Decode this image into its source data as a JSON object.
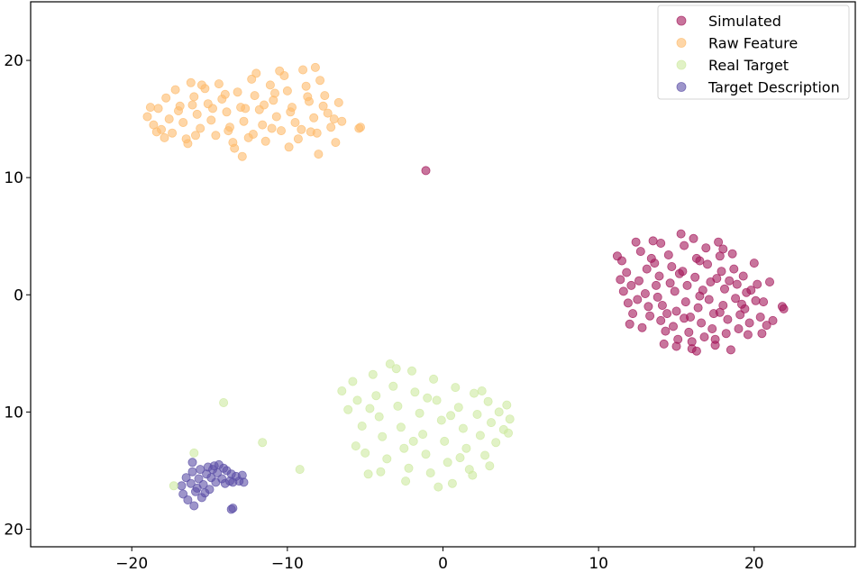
{
  "chart_data": {
    "type": "scatter",
    "title": "",
    "xlabel": "",
    "ylabel": "",
    "xlim": [
      -26.5,
      26.5
    ],
    "ylim": [
      -21.5,
      25
    ],
    "grid": false,
    "legend_placement": "top-right",
    "x_ticks": [
      {
        "value": -20,
        "label": "−20"
      },
      {
        "value": -10,
        "label": "−10"
      },
      {
        "value": 0,
        "label": "0"
      },
      {
        "value": 10,
        "label": "10"
      },
      {
        "value": 20,
        "label": "20"
      }
    ],
    "y_ticks": [
      {
        "value": 20,
        "label": "20"
      },
      {
        "value": 10,
        "label": "10"
      },
      {
        "value": 0,
        "label": "0"
      },
      {
        "value": -10,
        "label": "10"
      },
      {
        "value": -20,
        "label": "20"
      }
    ],
    "series": [
      {
        "name": "Simulated",
        "color": "#a3175a",
        "points": [
          [
            11.2,
            3.3
          ],
          [
            11.5,
            2.9
          ],
          [
            11.8,
            1.9
          ],
          [
            11.6,
            0.3
          ],
          [
            11.9,
            -0.7
          ],
          [
            12.2,
            -1.6
          ],
          [
            12.0,
            -2.5
          ],
          [
            12.4,
            4.5
          ],
          [
            12.7,
            3.7
          ],
          [
            12.6,
            1.2
          ],
          [
            13.0,
            0.1
          ],
          [
            13.2,
            -1.0
          ],
          [
            12.8,
            -2.8
          ],
          [
            13.3,
            -1.8
          ],
          [
            13.5,
            4.6
          ],
          [
            13.6,
            2.7
          ],
          [
            13.9,
            1.6
          ],
          [
            13.8,
            -0.2
          ],
          [
            14.1,
            -0.9
          ],
          [
            14.0,
            -2.2
          ],
          [
            14.3,
            -3.1
          ],
          [
            14.2,
            -4.2
          ],
          [
            14.5,
            3.4
          ],
          [
            14.7,
            2.4
          ],
          [
            14.6,
            1.0
          ],
          [
            14.9,
            0.3
          ],
          [
            15.0,
            -1.4
          ],
          [
            14.8,
            -2.7
          ],
          [
            15.1,
            -3.8
          ],
          [
            15.3,
            5.2
          ],
          [
            15.5,
            4.2
          ],
          [
            15.4,
            2.0
          ],
          [
            15.7,
            0.8
          ],
          [
            15.6,
            -0.6
          ],
          [
            15.9,
            -1.9
          ],
          [
            15.8,
            -3.2
          ],
          [
            16.0,
            -4.6
          ],
          [
            16.1,
            4.8
          ],
          [
            16.3,
            3.1
          ],
          [
            16.2,
            1.5
          ],
          [
            16.5,
            -0.1
          ],
          [
            16.4,
            -1.1
          ],
          [
            16.6,
            -2.4
          ],
          [
            16.8,
            -3.6
          ],
          [
            16.9,
            4.0
          ],
          [
            17.0,
            2.6
          ],
          [
            17.2,
            1.1
          ],
          [
            17.1,
            -0.4
          ],
          [
            17.4,
            -1.6
          ],
          [
            17.3,
            -2.9
          ],
          [
            17.5,
            -4.3
          ],
          [
            17.7,
            4.5
          ],
          [
            17.8,
            3.3
          ],
          [
            17.9,
            2.0
          ],
          [
            18.1,
            0.5
          ],
          [
            18.0,
            -0.9
          ],
          [
            18.3,
            -2.1
          ],
          [
            18.2,
            -3.3
          ],
          [
            18.5,
            -4.7
          ],
          [
            18.6,
            3.5
          ],
          [
            18.7,
            2.2
          ],
          [
            18.9,
            0.9
          ],
          [
            18.8,
            -0.3
          ],
          [
            19.1,
            -1.7
          ],
          [
            19.0,
            -2.9
          ],
          [
            19.3,
            1.6
          ],
          [
            19.5,
            0.2
          ],
          [
            19.4,
            -1.2
          ],
          [
            19.7,
            -2.4
          ],
          [
            19.6,
            -3.4
          ],
          [
            20.0,
            2.7
          ],
          [
            20.2,
            0.9
          ],
          [
            20.1,
            -0.5
          ],
          [
            20.4,
            -1.9
          ],
          [
            20.6,
            -0.6
          ],
          [
            20.8,
            -2.6
          ],
          [
            21.0,
            1.1
          ],
          [
            21.2,
            -2.2
          ],
          [
            21.8,
            -1.0
          ],
          [
            21.9,
            -1.2
          ],
          [
            11.4,
            1.3
          ],
          [
            12.1,
            0.8
          ],
          [
            13.4,
            3.1
          ],
          [
            14.4,
            -1.6
          ],
          [
            15.2,
            1.8
          ],
          [
            16.7,
            0.4
          ],
          [
            17.6,
            1.4
          ],
          [
            18.4,
            1.2
          ],
          [
            19.2,
            -0.8
          ],
          [
            16.0,
            -4.0
          ],
          [
            17.5,
            -3.8
          ],
          [
            15.0,
            -4.4
          ],
          [
            13.7,
            0.8
          ],
          [
            16.5,
            2.9
          ],
          [
            17.8,
            -1.5
          ],
          [
            15.5,
            -2.0
          ],
          [
            14.0,
            4.4
          ],
          [
            18.0,
            3.9
          ],
          [
            12.5,
            -0.4
          ],
          [
            19.8,
            0.4
          ],
          [
            20.5,
            -3.3
          ],
          [
            13.1,
            2.2
          ],
          [
            16.3,
            -4.8
          ]
        ]
      },
      {
        "name": "Raw Feature",
        "color": "#fdbb6c",
        "points": [
          [
            -19.0,
            15.2
          ],
          [
            -18.6,
            14.5
          ],
          [
            -18.3,
            15.9
          ],
          [
            -18.1,
            14.1
          ],
          [
            -17.8,
            16.8
          ],
          [
            -17.6,
            15.0
          ],
          [
            -17.4,
            13.8
          ],
          [
            -17.2,
            17.5
          ],
          [
            -16.9,
            16.1
          ],
          [
            -16.7,
            14.7
          ],
          [
            -16.5,
            13.3
          ],
          [
            -16.2,
            18.1
          ],
          [
            -16.0,
            16.9
          ],
          [
            -15.8,
            15.4
          ],
          [
            -15.6,
            14.2
          ],
          [
            -15.3,
            17.6
          ],
          [
            -15.1,
            16.3
          ],
          [
            -14.9,
            14.9
          ],
          [
            -14.6,
            13.6
          ],
          [
            -14.4,
            18.0
          ],
          [
            -14.2,
            16.7
          ],
          [
            -13.9,
            15.6
          ],
          [
            -13.7,
            14.3
          ],
          [
            -13.5,
            13.0
          ],
          [
            -13.2,
            17.3
          ],
          [
            -13.0,
            16.0
          ],
          [
            -12.8,
            14.8
          ],
          [
            -12.5,
            13.4
          ],
          [
            -12.3,
            18.4
          ],
          [
            -12.1,
            17.0
          ],
          [
            -11.8,
            15.8
          ],
          [
            -11.6,
            14.5
          ],
          [
            -11.4,
            13.1
          ],
          [
            -11.1,
            17.9
          ],
          [
            -10.9,
            16.6
          ],
          [
            -10.7,
            15.2
          ],
          [
            -10.4,
            14.0
          ],
          [
            -10.2,
            18.7
          ],
          [
            -10.0,
            17.4
          ],
          [
            -9.7,
            16.0
          ],
          [
            -9.5,
            14.7
          ],
          [
            -9.3,
            13.3
          ],
          [
            -9.0,
            19.2
          ],
          [
            -8.8,
            17.8
          ],
          [
            -8.6,
            16.5
          ],
          [
            -8.3,
            15.1
          ],
          [
            -8.1,
            13.8
          ],
          [
            -7.9,
            18.3
          ],
          [
            -7.6,
            17.0
          ],
          [
            -7.4,
            15.5
          ],
          [
            -7.2,
            14.3
          ],
          [
            -6.9,
            13.0
          ],
          [
            -6.7,
            16.4
          ],
          [
            -6.5,
            14.8
          ],
          [
            -5.4,
            14.2
          ],
          [
            -5.3,
            14.3
          ],
          [
            -18.8,
            16.0
          ],
          [
            -17.0,
            15.7
          ],
          [
            -15.9,
            13.6
          ],
          [
            -14.0,
            17.1
          ],
          [
            -12.7,
            15.9
          ],
          [
            -11.0,
            14.2
          ],
          [
            -9.8,
            15.6
          ],
          [
            -8.5,
            13.9
          ],
          [
            -7.7,
            16.1
          ],
          [
            -13.4,
            12.5
          ],
          [
            -12.9,
            11.8
          ],
          [
            -9.9,
            12.6
          ],
          [
            -8.0,
            12.0
          ],
          [
            -16.4,
            12.9
          ],
          [
            -17.9,
            13.4
          ],
          [
            -15.5,
            17.9
          ],
          [
            -10.5,
            19.1
          ],
          [
            -8.2,
            19.4
          ],
          [
            -12.0,
            18.9
          ],
          [
            -14.8,
            15.9
          ],
          [
            -11.5,
            16.2
          ],
          [
            -9.1,
            14.1
          ],
          [
            -7.0,
            15.0
          ],
          [
            -16.1,
            16.2
          ],
          [
            -13.8,
            14.0
          ],
          [
            -10.8,
            17.2
          ],
          [
            -8.7,
            16.9
          ],
          [
            -12.2,
            13.7
          ],
          [
            -18.4,
            13.9
          ]
        ]
      },
      {
        "name": "Real Target",
        "color": "#cdeaa0",
        "points": [
          [
            -6.5,
            -8.2
          ],
          [
            -6.1,
            -9.8
          ],
          [
            -5.8,
            -7.4
          ],
          [
            -5.5,
            -9.0
          ],
          [
            -5.2,
            -11.2
          ],
          [
            -5.0,
            -13.5
          ],
          [
            -4.8,
            -15.3
          ],
          [
            -4.5,
            -6.8
          ],
          [
            -4.3,
            -8.6
          ],
          [
            -4.1,
            -10.4
          ],
          [
            -3.9,
            -12.1
          ],
          [
            -3.6,
            -14.0
          ],
          [
            -3.4,
            -5.9
          ],
          [
            -3.2,
            -7.8
          ],
          [
            -2.9,
            -9.5
          ],
          [
            -2.7,
            -11.3
          ],
          [
            -2.5,
            -13.1
          ],
          [
            -2.2,
            -14.8
          ],
          [
            -2.0,
            -6.5
          ],
          [
            -1.8,
            -8.3
          ],
          [
            -1.5,
            -10.1
          ],
          [
            -1.3,
            -11.9
          ],
          [
            -1.1,
            -13.6
          ],
          [
            -0.8,
            -15.2
          ],
          [
            -0.6,
            -7.2
          ],
          [
            -0.4,
            -9.0
          ],
          [
            -0.1,
            -10.7
          ],
          [
            0.1,
            -12.5
          ],
          [
            0.3,
            -14.3
          ],
          [
            0.6,
            -16.1
          ],
          [
            0.8,
            -7.9
          ],
          [
            1.0,
            -9.6
          ],
          [
            1.3,
            -11.4
          ],
          [
            1.5,
            -13.1
          ],
          [
            1.7,
            -14.9
          ],
          [
            2.0,
            -8.4
          ],
          [
            2.2,
            -10.2
          ],
          [
            2.4,
            -12.0
          ],
          [
            2.7,
            -13.7
          ],
          [
            2.9,
            -9.1
          ],
          [
            3.1,
            -10.9
          ],
          [
            3.4,
            -12.6
          ],
          [
            3.6,
            -10.0
          ],
          [
            3.9,
            -11.5
          ],
          [
            4.1,
            -9.4
          ],
          [
            4.3,
            -10.6
          ],
          [
            4.2,
            -11.8
          ],
          [
            -4.0,
            -15.1
          ],
          [
            -2.4,
            -15.9
          ],
          [
            -0.3,
            -16.4
          ],
          [
            1.9,
            -15.4
          ],
          [
            3.0,
            -14.6
          ],
          [
            -5.6,
            -12.9
          ],
          [
            -1.0,
            -8.8
          ],
          [
            0.5,
            -10.3
          ],
          [
            2.5,
            -8.2
          ],
          [
            -3.0,
            -6.3
          ],
          [
            -4.7,
            -9.7
          ],
          [
            1.1,
            -13.9
          ],
          [
            -1.9,
            -12.5
          ]
        ]
      },
      {
        "name": "Target Description",
        "color": "#5b4fa6",
        "points": [
          [
            -16.8,
            -16.3
          ],
          [
            -16.7,
            -17.0
          ],
          [
            -16.5,
            -15.6
          ],
          [
            -16.4,
            -17.5
          ],
          [
            -16.2,
            -16.1
          ],
          [
            -16.1,
            -15.1
          ],
          [
            -16.0,
            -18.0
          ],
          [
            -15.9,
            -16.8
          ],
          [
            -15.7,
            -15.7
          ],
          [
            -15.6,
            -14.9
          ],
          [
            -15.5,
            -17.3
          ],
          [
            -15.4,
            -16.2
          ],
          [
            -15.2,
            -15.3
          ],
          [
            -15.1,
            -14.7
          ],
          [
            -15.0,
            -16.6
          ],
          [
            -14.9,
            -15.6
          ],
          [
            -14.7,
            -14.6
          ],
          [
            -14.6,
            -16.0
          ],
          [
            -14.5,
            -15.2
          ],
          [
            -14.4,
            -14.5
          ],
          [
            -14.2,
            -15.7
          ],
          [
            -14.1,
            -14.8
          ],
          [
            -14.0,
            -16.1
          ],
          [
            -13.9,
            -15.0
          ],
          [
            -13.7,
            -15.9
          ],
          [
            -13.6,
            -15.3
          ],
          [
            -13.5,
            -16.0
          ],
          [
            -13.3,
            -15.5
          ],
          [
            -13.1,
            -15.9
          ],
          [
            -12.9,
            -15.4
          ],
          [
            -12.8,
            -16.0
          ],
          [
            -13.5,
            -18.2
          ],
          [
            -13.6,
            -18.3
          ],
          [
            -16.1,
            -14.3
          ],
          [
            -15.8,
            -16.5
          ],
          [
            -15.3,
            -16.9
          ],
          [
            -14.8,
            -14.9
          ]
        ]
      }
    ],
    "extra_points": [
      {
        "series": "Simulated",
        "x": -1.1,
        "y": 10.6
      },
      {
        "series": "Real Target",
        "x": -14.1,
        "y": -9.2
      },
      {
        "series": "Real Target",
        "x": -11.6,
        "y": -12.6
      },
      {
        "series": "Real Target",
        "x": -9.2,
        "y": -14.9
      },
      {
        "series": "Real Target",
        "x": -16.0,
        "y": -13.5
      },
      {
        "series": "Real Target",
        "x": -17.3,
        "y": -16.3
      }
    ]
  }
}
